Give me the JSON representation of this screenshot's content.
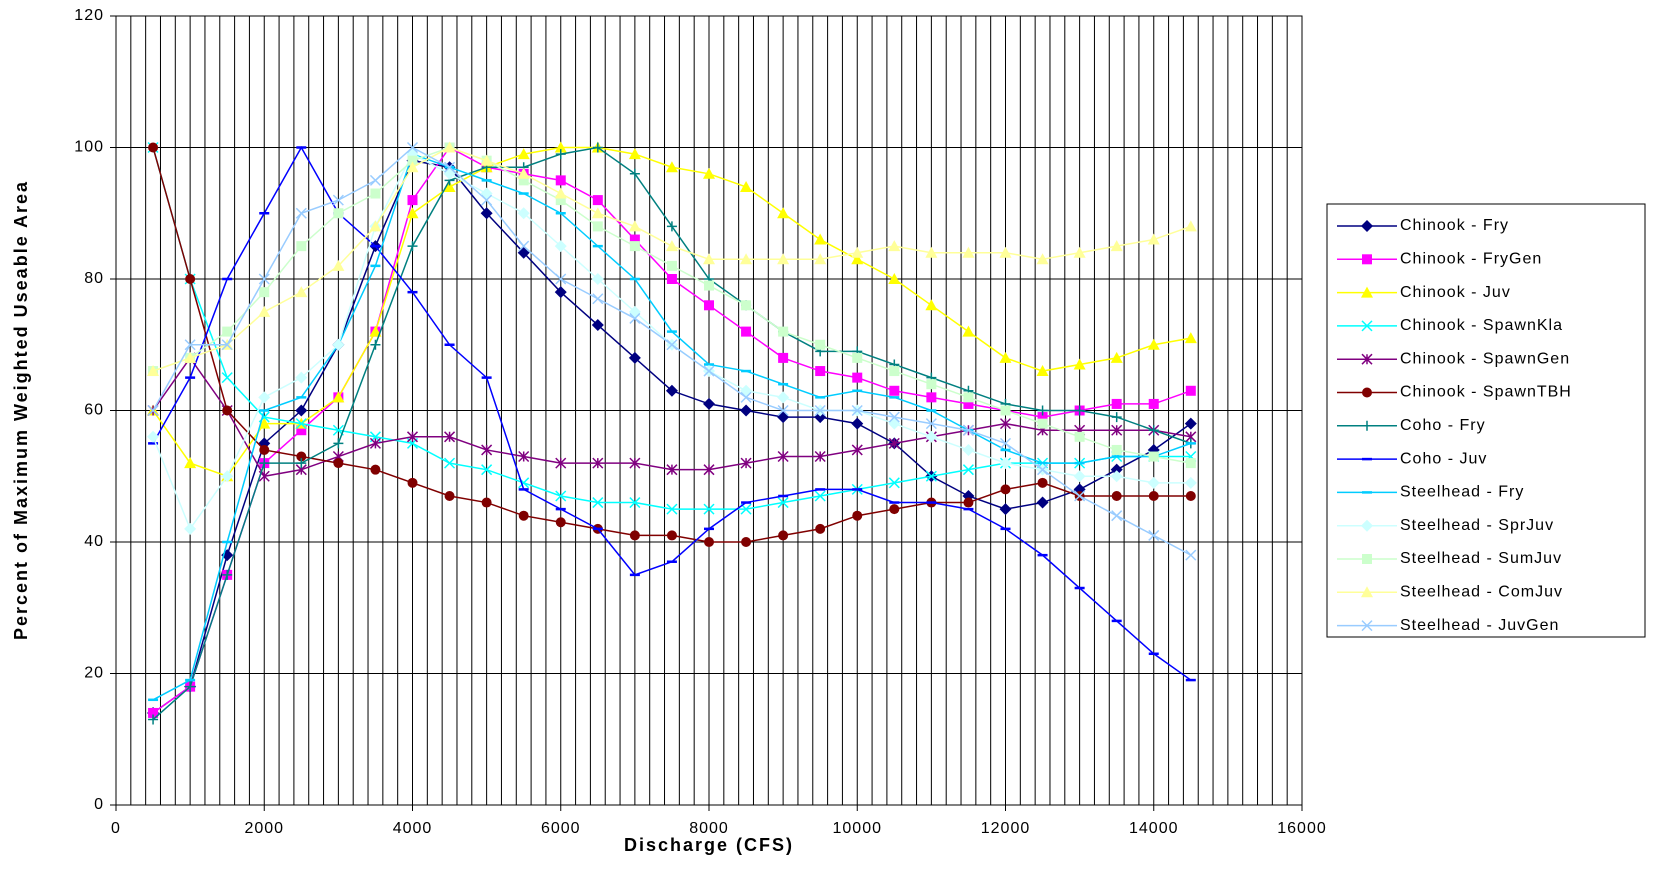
{
  "chart_data": {
    "type": "line",
    "x_label": "Discharge (CFS)",
    "y_label": "Percent of Maximum Weighted Useable Area",
    "xlim": [
      0,
      16000
    ],
    "ylim": [
      0,
      120
    ],
    "xticks": [
      0,
      2000,
      4000,
      6000,
      8000,
      10000,
      12000,
      14000,
      16000
    ],
    "yticks": [
      0,
      20,
      40,
      60,
      80,
      100,
      120
    ],
    "x_grid": [
      0,
      200,
      400,
      600,
      800,
      1000,
      1200,
      1400,
      1600,
      1800,
      2000,
      2200,
      2400,
      2600,
      2800,
      3000,
      3200,
      3400,
      3600,
      3800,
      4000,
      4200,
      4400,
      4600,
      4800,
      5000,
      5200,
      5400,
      5600,
      5800,
      6000,
      6200,
      6400,
      6600,
      6800,
      7000,
      7200,
      7400,
      7600,
      7800,
      8000,
      8200,
      8400,
      8600,
      8800,
      9000,
      9200,
      9400,
      9600,
      9800,
      10000,
      10200,
      10400,
      10600,
      10800,
      11000,
      11200,
      11400,
      11600,
      11800,
      12000,
      12200,
      12400,
      12600,
      12800,
      13000,
      13200,
      13400,
      13600,
      13800,
      14000,
      14200,
      14400,
      14600,
      14800,
      15000,
      15200,
      15400,
      15600,
      15800,
      16000
    ],
    "grid": true,
    "legend": "right",
    "x": [
      500,
      1000,
      1500,
      2000,
      2500,
      3000,
      3500,
      4000,
      4500,
      5000,
      5500,
      6000,
      6500,
      7000,
      7500,
      8000,
      8500,
      9000,
      9500,
      10000,
      10500,
      11000,
      11500,
      12000,
      12500,
      13000,
      13500,
      14000,
      14500
    ],
    "series": [
      {
        "name": "Chinook - Fry",
        "color": "#000080",
        "marker": "diamond",
        "values": [
          14,
          18,
          38,
          55,
          60,
          70,
          85,
          98,
          97,
          90,
          84,
          78,
          73,
          68,
          63,
          61,
          60,
          59,
          59,
          58,
          55,
          50,
          47,
          45,
          46,
          48,
          51,
          54,
          58
        ]
      },
      {
        "name": "Chinook - FryGen",
        "color": "#ff00ff",
        "marker": "square",
        "values": [
          14,
          18,
          35,
          52,
          57,
          62,
          72,
          92,
          100,
          97,
          96,
          95,
          92,
          86,
          80,
          76,
          72,
          68,
          66,
          65,
          63,
          62,
          61,
          60,
          59,
          60,
          61,
          61,
          63
        ]
      },
      {
        "name": "Chinook - Juv",
        "color": "#ffff00",
        "marker": "triangle",
        "values": [
          60,
          52,
          50,
          58,
          58,
          62,
          72,
          90,
          94,
          97,
          99,
          100,
          100,
          99,
          97,
          96,
          94,
          90,
          86,
          83,
          80,
          76,
          72,
          68,
          66,
          67,
          68,
          70,
          71
        ]
      },
      {
        "name": "Chinook - SpawnKla",
        "color": "#00ffff",
        "marker": "x",
        "values": [
          100,
          80,
          65,
          59,
          58,
          57,
          56,
          55,
          52,
          51,
          49,
          47,
          46,
          46,
          45,
          45,
          45,
          46,
          47,
          48,
          49,
          50,
          51,
          52,
          52,
          52,
          53,
          53,
          53
        ]
      },
      {
        "name": "Chinook - SpawnGen",
        "color": "#800080",
        "marker": "star",
        "values": [
          60,
          68,
          60,
          50,
          51,
          53,
          55,
          56,
          56,
          54,
          53,
          52,
          52,
          52,
          51,
          51,
          52,
          53,
          53,
          54,
          55,
          56,
          57,
          58,
          57,
          57,
          57,
          57,
          56
        ]
      },
      {
        "name": "Chinook - SpawnTBH",
        "color": "#800000",
        "marker": "circle",
        "values": [
          100,
          80,
          60,
          54,
          53,
          52,
          51,
          49,
          47,
          46,
          44,
          43,
          42,
          41,
          41,
          40,
          40,
          41,
          42,
          44,
          45,
          46,
          46,
          48,
          49,
          47,
          47,
          47,
          47
        ]
      },
      {
        "name": "Coho - Fry",
        "color": "#008080",
        "marker": "plus",
        "values": [
          13,
          18,
          35,
          52,
          52,
          55,
          70,
          85,
          95,
          97,
          97,
          99,
          100,
          96,
          88,
          80,
          76,
          72,
          69,
          69,
          67,
          65,
          63,
          61,
          60,
          60,
          59,
          57,
          55
        ]
      },
      {
        "name": "Coho - Juv",
        "color": "#0000ff",
        "marker": "dash",
        "values": [
          55,
          65,
          80,
          90,
          100,
          90,
          85,
          78,
          70,
          65,
          48,
          45,
          42,
          35,
          37,
          42,
          46,
          47,
          48,
          48,
          46,
          46,
          45,
          42,
          38,
          33,
          28,
          23,
          19
        ]
      },
      {
        "name": "Steelhead - Fry",
        "color": "#00ccff",
        "marker": "dash",
        "values": [
          16,
          19,
          40,
          60,
          62,
          70,
          82,
          99,
          97,
          95,
          93,
          90,
          85,
          80,
          72,
          67,
          66,
          64,
          62,
          63,
          62,
          60,
          57,
          54,
          52,
          52,
          53,
          53,
          55
        ]
      },
      {
        "name": "Steelhead - SprJuv",
        "color": "#ccffff",
        "marker": "diamond",
        "values": [
          56,
          42,
          50,
          62,
          65,
          70,
          88,
          99,
          96,
          93,
          90,
          85,
          80,
          75,
          70,
          66,
          63,
          62,
          60,
          60,
          58,
          56,
          54,
          52,
          51,
          50,
          50,
          49,
          49
        ]
      },
      {
        "name": "Steelhead - SumJuv",
        "color": "#ccffcc",
        "marker": "square",
        "values": [
          66,
          68,
          72,
          78,
          85,
          90,
          93,
          98,
          100,
          98,
          95,
          92,
          88,
          85,
          82,
          79,
          76,
          72,
          70,
          68,
          66,
          64,
          62,
          60,
          58,
          56,
          54,
          53,
          52
        ]
      },
      {
        "name": "Steelhead - ComJuv",
        "color": "#ffff99",
        "marker": "triangle",
        "values": [
          66,
          68,
          70,
          75,
          78,
          82,
          88,
          97,
          100,
          98,
          96,
          93,
          90,
          88,
          85,
          83,
          83,
          83,
          83,
          84,
          85,
          84,
          84,
          84,
          83,
          84,
          85,
          86,
          88
        ]
      },
      {
        "name": "Steelhead - JuvGen",
        "color": "#99ccff",
        "marker": "x",
        "values": [
          60,
          70,
          70,
          80,
          90,
          92,
          95,
          100,
          97,
          92,
          85,
          80,
          77,
          74,
          70,
          66,
          62,
          60,
          60,
          60,
          59,
          58,
          57,
          55,
          51,
          47,
          44,
          41,
          38
        ]
      }
    ]
  }
}
